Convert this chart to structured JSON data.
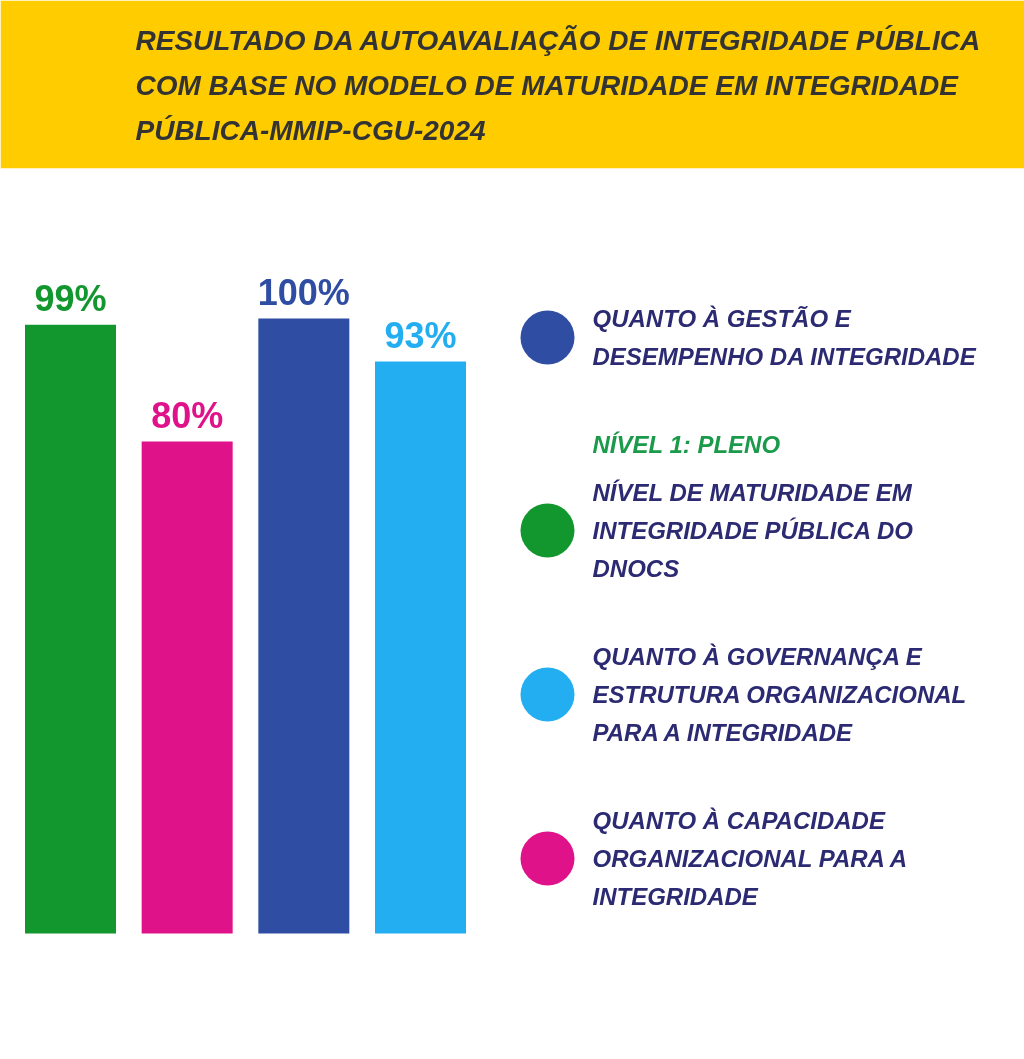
{
  "chart_data": {
    "type": "bar",
    "title": "RESULTADO DA AUTOAVALIAÇÃO DE INTEGRIDADE PÚBLICA COM BASE NO MODELO DE MATURIDADE EM INTEGRIDADE PÚBLICA-MMIP-CGU-2024",
    "categories": [
      null,
      null,
      null,
      null
    ],
    "stacked": true,
    "series": [
      {
        "name": "QUANTO À GESTÃO E DESEMPENHO DA INTEGRIDADE",
        "color": "#2f4ea3",
        "values": [
          null,
          null,
          100,
          null
        ],
        "value_labels": [
          null,
          null,
          "100%",
          null
        ]
      },
      {
        "name": "NÍVEL DE MATURIDADE EM INTEGRIDADE PÚBLICA DO DNOCS",
        "color": "#12962e",
        "values": [
          99,
          null,
          null,
          null
        ],
        "value_labels": [
          "99%",
          null,
          null,
          null
        ]
      },
      {
        "name": "QUANTO À GOVERNANÇA E ESTRUTURA ORGANIZACIONAL PARA A INTEGRIDADE",
        "color": "#22aef0",
        "values": [
          null,
          null,
          null,
          93
        ],
        "value_labels": [
          null,
          null,
          null,
          "93%"
        ]
      },
      {
        "name": "QUANTO À CAPACIDADE ORGANIZACIONAL PARA A INTEGRIDADE",
        "color": "#e0128a",
        "values": [
          null,
          80,
          null,
          null
        ],
        "value_labels": [
          null,
          "80%",
          null,
          null
        ]
      }
    ],
    "annotations": [
      "NÍVEL 1: PLENO"
    ],
    "data_labels": true,
    "legend": "right",
    "tick_labels": false
  }
}
